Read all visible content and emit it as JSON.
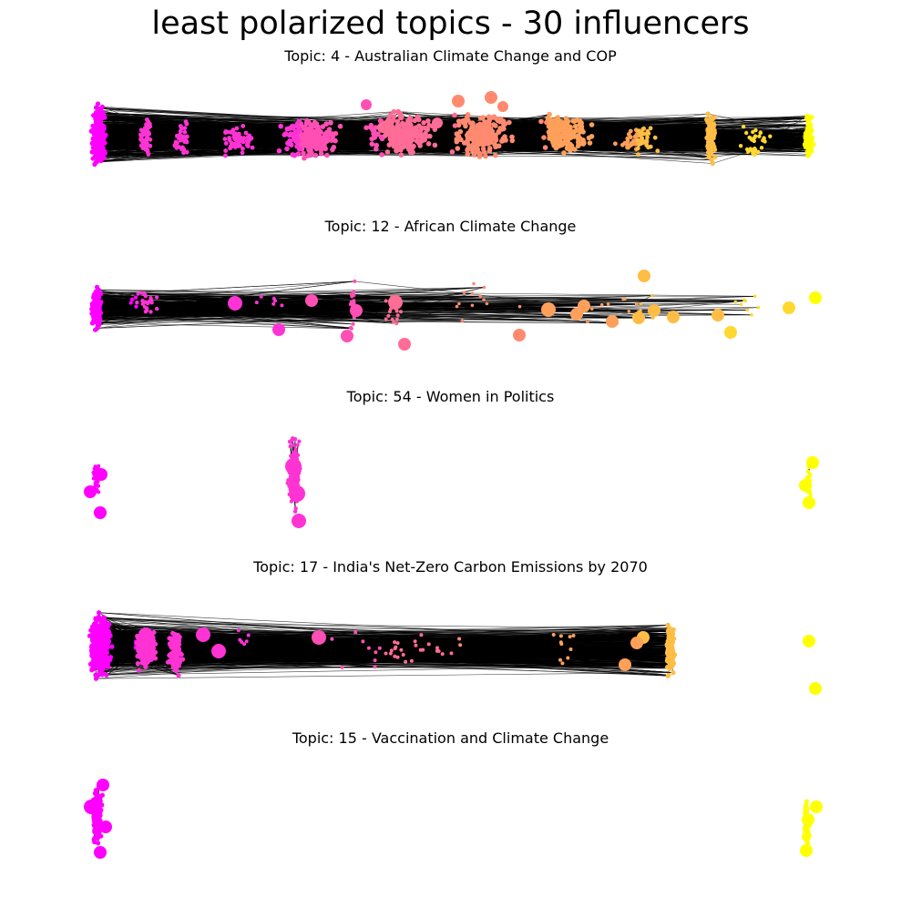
{
  "title": "least polarized topics - 30 influencers",
  "panels": [
    {
      "title": "Topic: 4 - Australian Climate Change and COP"
    },
    {
      "title": "Topic: 12 - African Climate Change"
    },
    {
      "title": "Topic: 54 - Women in Politics"
    },
    {
      "title": "Topic: 17 - India's Net-Zero Carbon Emissions by 2070"
    },
    {
      "title": "Topic: 15 - Vaccination and Climate Change"
    }
  ],
  "colors": {
    "magenta": "#ff00ff",
    "pink": "#ff4fb4",
    "salmon": "#ff8a70",
    "orange": "#ffbd45",
    "yellow": "#ffff00",
    "edge": "#000000",
    "background": "#ffffff"
  }
}
